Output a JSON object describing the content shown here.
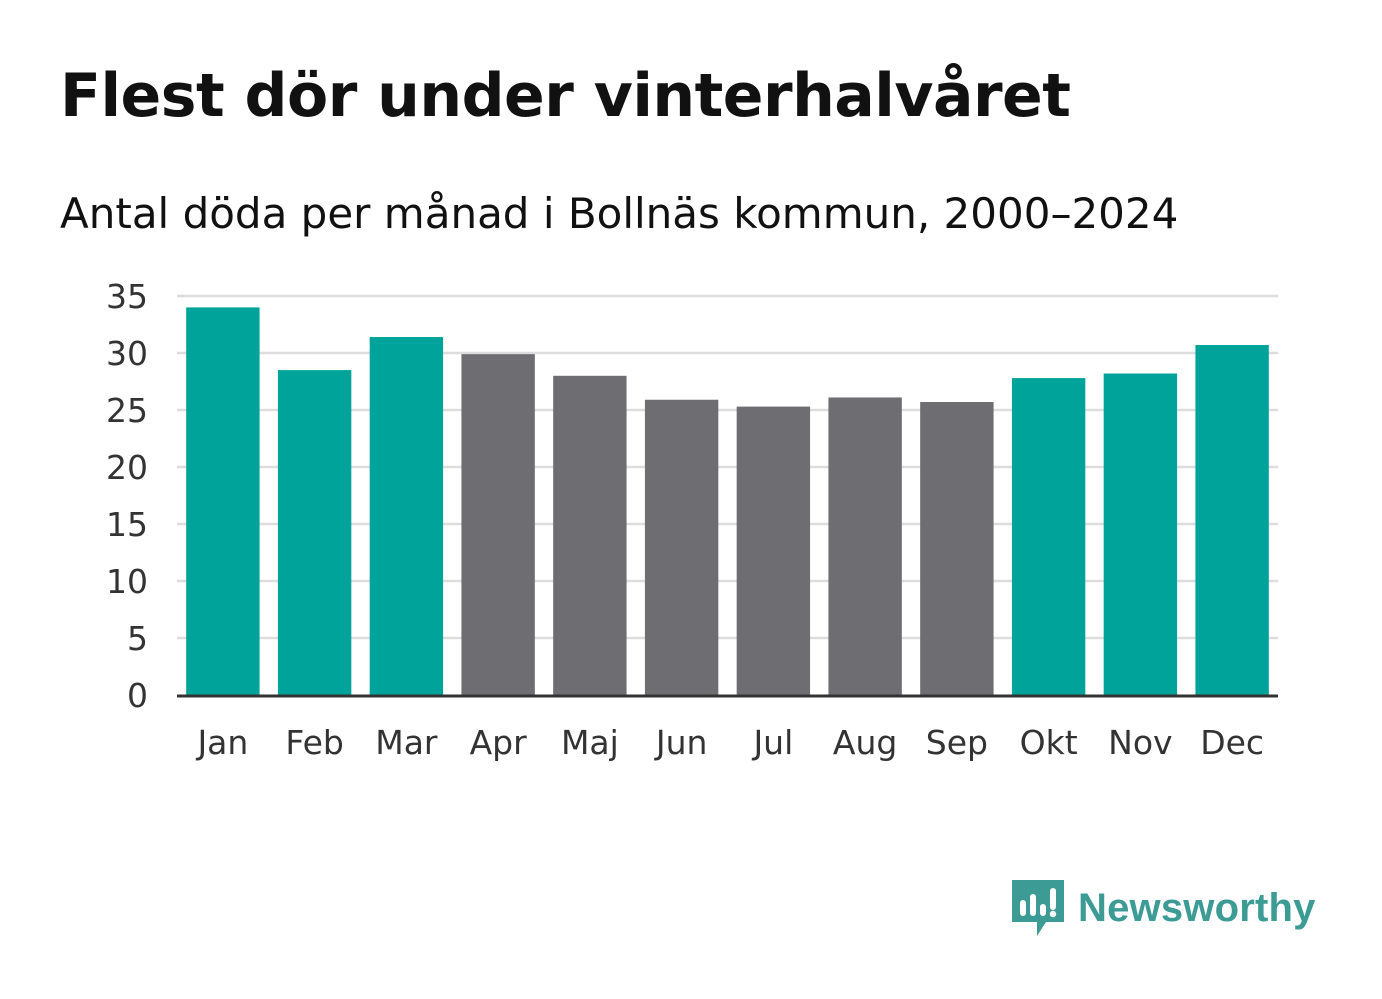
{
  "header": {
    "title": "Flest dör under vinterhalvåret",
    "subtitle": "Antal döda per månad i Bollnäs kommun, 2000–2024"
  },
  "brand": {
    "name": "Newsworthy",
    "color": "#3c9b94"
  },
  "chart_data": {
    "type": "bar",
    "title": "Flest dör under vinterhalvåret",
    "subtitle": "Antal döda per månad i Bollnäs kommun, 2000–2024",
    "xlabel": "",
    "ylabel": "",
    "ylim": [
      0,
      35
    ],
    "yticks": [
      0,
      5,
      10,
      15,
      20,
      25,
      30,
      35
    ],
    "grid": true,
    "categories": [
      "Jan",
      "Feb",
      "Mar",
      "Apr",
      "Maj",
      "Jun",
      "Jul",
      "Aug",
      "Sep",
      "Okt",
      "Nov",
      "Dec"
    ],
    "values": [
      34.0,
      28.5,
      31.4,
      29.9,
      28.0,
      25.9,
      25.3,
      26.1,
      25.7,
      27.8,
      28.2,
      30.7
    ],
    "highlight": [
      true,
      true,
      true,
      false,
      false,
      false,
      false,
      false,
      false,
      true,
      true,
      true
    ],
    "colors": {
      "winter": "#00a39a",
      "summer": "#6e6d72",
      "grid": "#dddddd",
      "axis": "#333333"
    }
  }
}
